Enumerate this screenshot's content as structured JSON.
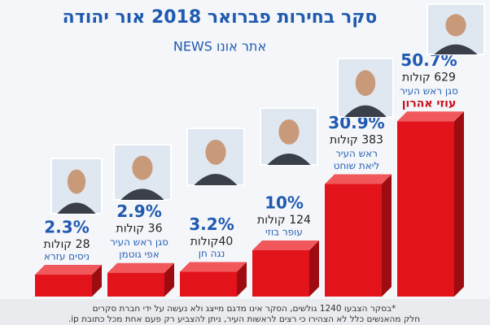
{
  "chart_data": {
    "type": "bar",
    "title": "סקר בחירות פברואר 2018 אור יהודה",
    "subtitle": "אתר אונו NEWS",
    "categories": [
      "עוזי אהרון",
      "ליאת שוחט",
      "עופר בוזי",
      "נגה חן",
      "אפי גוטמן",
      "ניסים עזרא"
    ],
    "roles": [
      "סגן ראש העיר",
      "ראש העיר",
      null,
      null,
      "סגן ראש העיר",
      null
    ],
    "values": [
      50.7,
      30.9,
      10,
      3.2,
      2.9,
      2.3
    ],
    "value_labels": [
      "50.7%",
      "30.9%",
      "10%",
      "3.2%",
      "2.9%",
      "2.3%"
    ],
    "votes": [
      629,
      383,
      124,
      40,
      36,
      28
    ],
    "vote_labels": [
      "629 קולות",
      "383 קולות",
      "124 קולות",
      "40קולות",
      "36 קולות",
      "28 קולות"
    ],
    "color": "#e3131b",
    "footnote": [
      "*בסקר הצבעו 1240 גולשים, הסקר אינו מדגם מייצג ולא נעשה על ידי חברת סקרים",
      "חלק מהאנשים כלל לא הצהירו כי רצים לראשות העיר, ניתן להצביע רק פעם אחת מכל כתובת ip."
    ]
  }
}
